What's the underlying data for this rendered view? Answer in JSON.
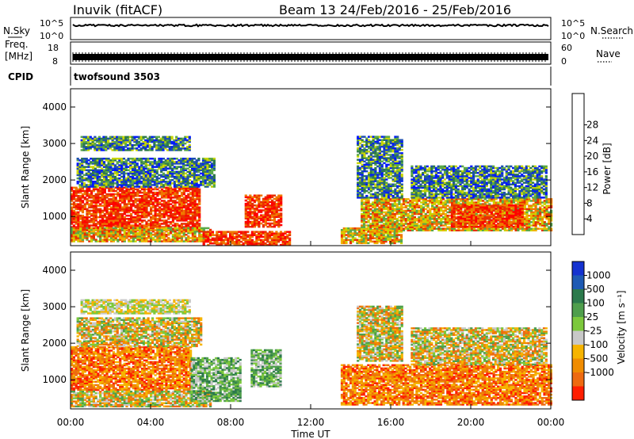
{
  "header": {
    "station": "Inuvik  (fitACF)",
    "beam_date": "Beam 13  24/Feb/2016 - 25/Feb/2016"
  },
  "top_panels": {
    "nsky_label": "N.Sky",
    "nsky_ticks_left": [
      "10^5",
      "10^0"
    ],
    "nsky_ticks_right": [
      "10^5",
      "10^0"
    ],
    "nsearch_label": "N.Search",
    "freq_label_1": "Freq.",
    "freq_label_2": "[MHz]",
    "freq_ticks": [
      "18",
      "8"
    ],
    "nave_ticks": [
      "60",
      "0"
    ],
    "nave_label": "Nave",
    "cpid_label": "CPID",
    "cpid_value": "twofsound 3503"
  },
  "colors": {
    "power_scale": [
      "#0018ff",
      "#1e4fb0",
      "#2f7a4a",
      "#5aa84a",
      "#c8d600",
      "#f0b400",
      "#f07800",
      "#e83000",
      "#ff0000"
    ],
    "velocity_scale": [
      "#1432d0",
      "#1e5ab4",
      "#2c7a4c",
      "#4f9e4c",
      "#7cc83c",
      "#c8c8c8",
      "#f6b400",
      "#f08c00",
      "#ee6a10",
      "#ff1e00"
    ]
  },
  "chart_data": [
    {
      "type": "heatmap",
      "panel": "power",
      "ylabel": "Slant Range [km]",
      "yticks": [
        "1000",
        "2000",
        "3000",
        "4000"
      ],
      "ylim": [
        200,
        4500
      ],
      "xticks": [
        "00:00",
        "04:00",
        "08:00",
        "12:00",
        "16:00",
        "20:00",
        "00:00"
      ],
      "colorbar_label": "Power [dB]",
      "colorbar_ticks": [
        "4",
        "8",
        "12",
        "16",
        "20",
        "24",
        "28"
      ],
      "regions": [
        {
          "t0": 0.0,
          "t1": 6.4,
          "r0": 600,
          "r1": 1800,
          "level": "high"
        },
        {
          "t0": 0.0,
          "t1": 7.0,
          "r0": 300,
          "r1": 700,
          "level": "mid"
        },
        {
          "t0": 0.3,
          "t1": 7.2,
          "r0": 1800,
          "r1": 2600,
          "level": "low"
        },
        {
          "t0": 0.5,
          "t1": 6.0,
          "r0": 2800,
          "r1": 3200,
          "level": "low"
        },
        {
          "t0": 6.6,
          "t1": 10.9,
          "r0": 200,
          "r1": 600,
          "level": "high"
        },
        {
          "t0": 8.7,
          "t1": 10.5,
          "r0": 700,
          "r1": 1600,
          "level": "high"
        },
        {
          "t0": 13.5,
          "t1": 16.5,
          "r0": 250,
          "r1": 700,
          "level": "mid"
        },
        {
          "t0": 14.5,
          "t1": 24.0,
          "r0": 600,
          "r1": 1500,
          "level": "mid"
        },
        {
          "t0": 19.0,
          "t1": 22.6,
          "r0": 700,
          "r1": 1300,
          "level": "high"
        },
        {
          "t0": 14.3,
          "t1": 16.5,
          "r0": 1500,
          "r1": 3200,
          "level": "low"
        },
        {
          "t0": 17.0,
          "t1": 23.8,
          "r0": 1500,
          "r1": 2400,
          "level": "low"
        }
      ]
    },
    {
      "type": "heatmap",
      "panel": "velocity",
      "ylabel": "Slant Range [km]",
      "yticks": [
        "1000",
        "2000",
        "3000",
        "4000"
      ],
      "ylim": [
        200,
        4500
      ],
      "xticks": [
        "00:00",
        "04:00",
        "08:00",
        "12:00",
        "16:00",
        "20:00",
        "00:00"
      ],
      "xlabel": "Time UT",
      "colorbar_label": "Velocity [m s⁻¹]",
      "colorbar_ticks": [
        "1000",
        "500",
        "100",
        "25",
        "-25",
        "-100",
        "-500",
        "-1000"
      ],
      "regions": [
        {
          "t0": 0.0,
          "t1": 6.0,
          "r0": 700,
          "r1": 1900,
          "level": "neg"
        },
        {
          "t0": 0.0,
          "t1": 7.0,
          "r0": 250,
          "r1": 700,
          "level": "mixed"
        },
        {
          "t0": 0.3,
          "t1": 6.5,
          "r0": 1900,
          "r1": 2700,
          "level": "mixed"
        },
        {
          "t0": 0.5,
          "t1": 6.0,
          "r0": 2800,
          "r1": 3200,
          "level": "zero"
        },
        {
          "t0": 6.0,
          "t1": 8.5,
          "r0": 400,
          "r1": 1600,
          "level": "pos"
        },
        {
          "t0": 9.0,
          "t1": 10.5,
          "r0": 800,
          "r1": 1800,
          "level": "pos"
        },
        {
          "t0": 13.5,
          "t1": 24.0,
          "r0": 300,
          "r1": 1400,
          "level": "neg"
        },
        {
          "t0": 14.3,
          "t1": 16.5,
          "r0": 1500,
          "r1": 3000,
          "level": "mixed"
        },
        {
          "t0": 17.0,
          "t1": 23.8,
          "r0": 1400,
          "r1": 2400,
          "level": "mixed"
        }
      ]
    }
  ]
}
